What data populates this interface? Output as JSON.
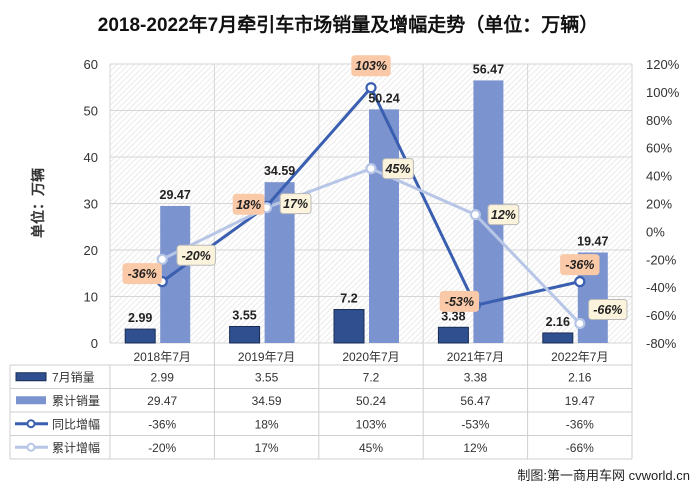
{
  "chart_data": {
    "type": "bar",
    "title": "2018-2022年7月牵引车市场销量及增幅走势（单位：万辆）",
    "ylabel": "单位：万辆",
    "ylim": [
      0,
      60
    ],
    "y_ticks": [
      "0",
      "10",
      "20",
      "30",
      "40",
      "50",
      "60"
    ],
    "y2lim": [
      -80,
      120
    ],
    "y2_ticks": [
      "-80%",
      "-60%",
      "-40%",
      "-20%",
      "0%",
      "20%",
      "40%",
      "60%",
      "80%",
      "100%",
      "120%"
    ],
    "categories": [
      "2018年7月",
      "2019年7月",
      "2020年7月",
      "2021年7月",
      "2022年7月"
    ],
    "series": [
      {
        "name": "7月销量",
        "kind": "bar",
        "axis": "left",
        "values": [
          2.99,
          3.55,
          7.2,
          3.38,
          2.16
        ],
        "labels": [
          "2.99",
          "3.55",
          "7.2",
          "3.38",
          "2.16"
        ],
        "color": "#2f4f8f"
      },
      {
        "name": "累计销量",
        "kind": "bar",
        "axis": "left",
        "values": [
          29.47,
          34.59,
          50.24,
          56.47,
          19.47
        ],
        "labels": [
          "29.47",
          "34.59",
          "50.24",
          "56.47",
          "19.47"
        ],
        "color": "#7b93cf"
      },
      {
        "name": "同比增幅",
        "kind": "line",
        "axis": "right",
        "values": [
          -36,
          18,
          103,
          -53,
          -36
        ],
        "labels": [
          "-36%",
          "18%",
          "103%",
          "-53%",
          "-36%"
        ],
        "color": "#3a5fb0"
      },
      {
        "name": "累计增幅",
        "kind": "line",
        "axis": "right",
        "values": [
          -20,
          17,
          45,
          12,
          -66
        ],
        "labels": [
          "-20%",
          "17%",
          "45%",
          "12%",
          "-66%"
        ],
        "color": "#b7c6e6"
      }
    ],
    "grid": true,
    "legend": "data-table-below"
  },
  "credit": "制图:第一商用车网 cvworld.cn"
}
